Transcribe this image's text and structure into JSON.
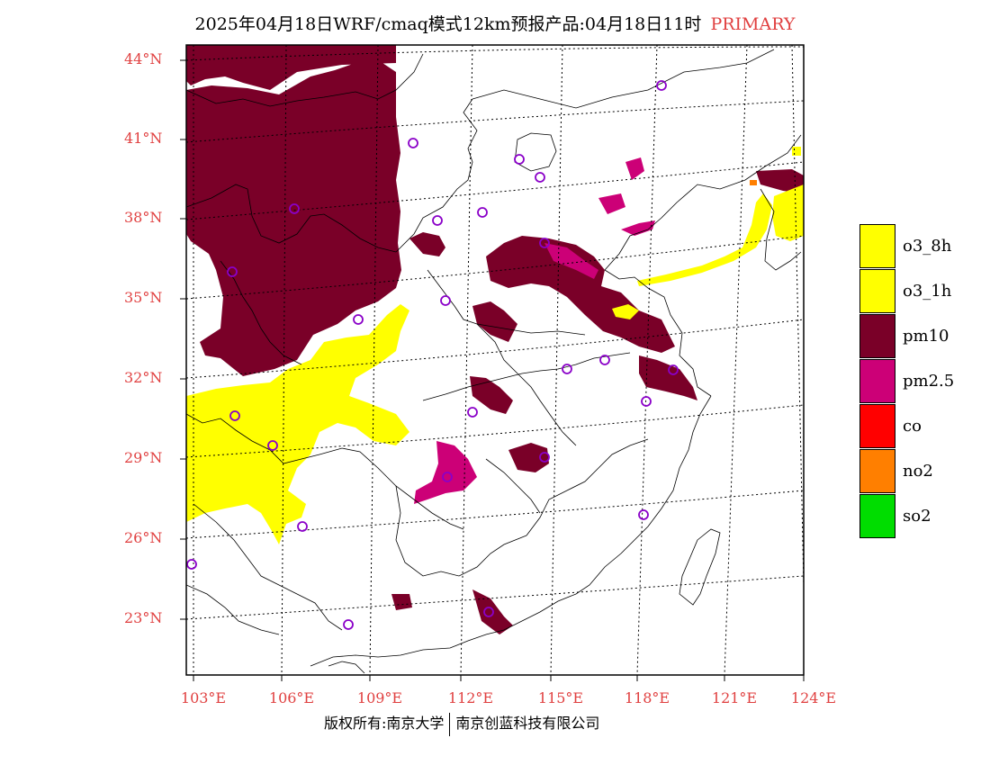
{
  "title": {
    "main": "2025年04月18日WRF/cmaq模式12km预报产品:04月18日11时",
    "tag": "PRIMARY"
  },
  "colors": {
    "label_red": "#e04040",
    "o3_8h": "#ffff00",
    "o3_1h": "#ffff00",
    "pm10": "#7a0028",
    "pm25": "#cc0077",
    "co": "#ff0000",
    "no2": "#ff7f00",
    "so2": "#00dd00",
    "station_circle": "#8a00c8"
  },
  "map": {
    "lat_labels": [
      "44°N",
      "41°N",
      "38°N",
      "35°N",
      "32°N",
      "29°N",
      "26°N",
      "23°N"
    ],
    "lon_labels": [
      "103°E",
      "106°E",
      "109°E",
      "112°E",
      "115°E",
      "118°E",
      "121°E",
      "124°E"
    ]
  },
  "legend": [
    {
      "key": "o3_8h",
      "label": "o3_8h"
    },
    {
      "key": "o3_1h",
      "label": "o3_1h"
    },
    {
      "key": "pm10",
      "label": "pm10"
    },
    {
      "key": "pm25",
      "label": "pm2.5"
    },
    {
      "key": "co",
      "label": "co"
    },
    {
      "key": "no2",
      "label": "no2"
    },
    {
      "key": "so2",
      "label": "so2"
    }
  ],
  "copyright": {
    "left": "版权所有:南京大学",
    "right": "南京创蓝科技有限公司"
  }
}
